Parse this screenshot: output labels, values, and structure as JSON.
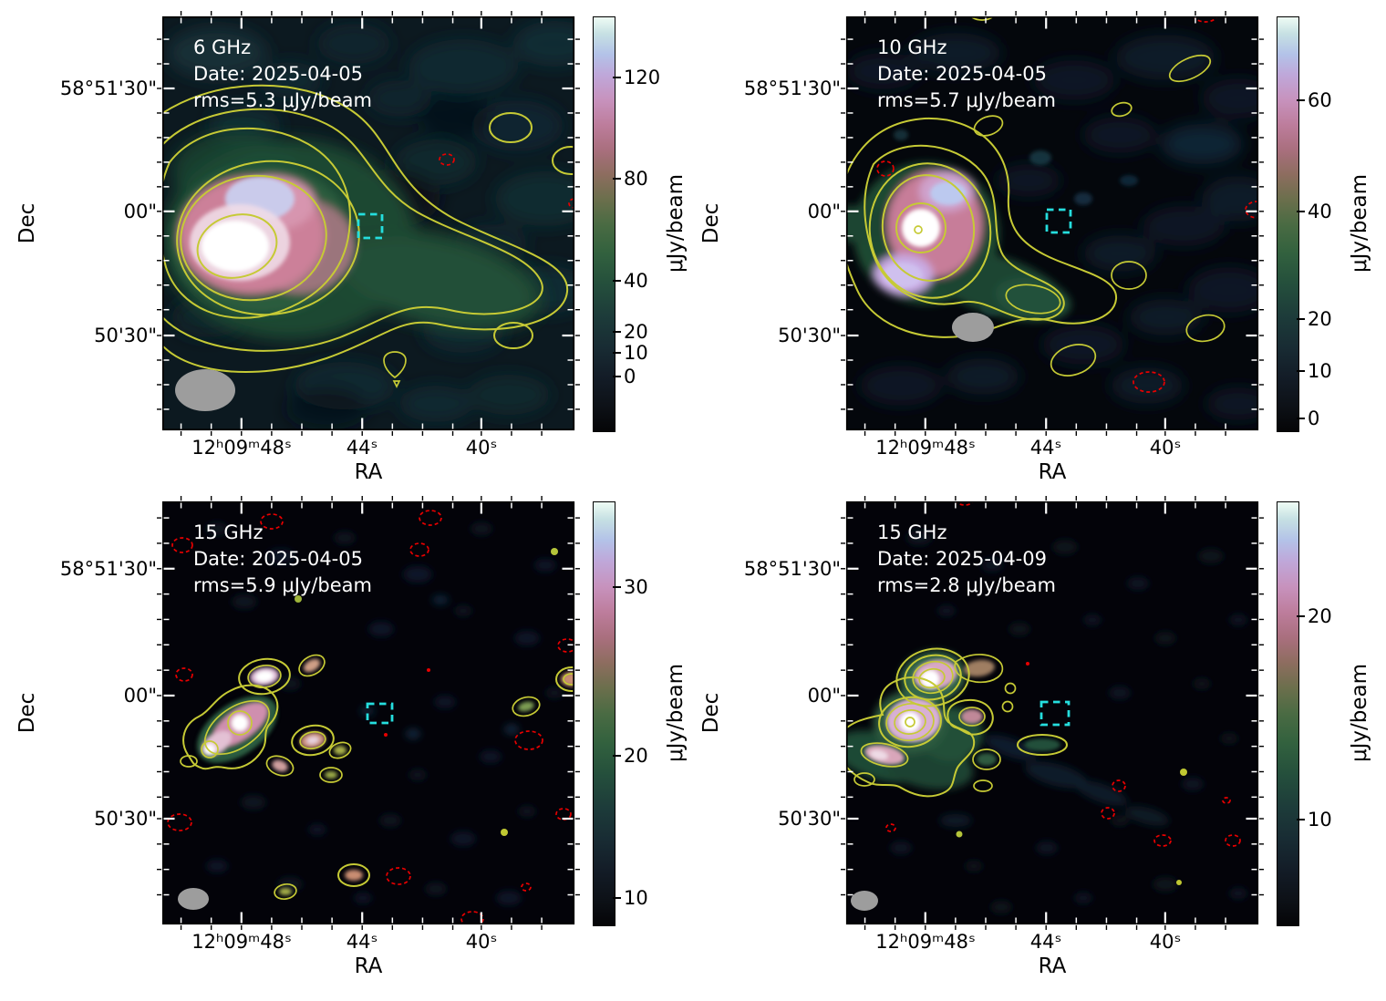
{
  "panels": [
    {
      "freq": "6 GHz",
      "date": "Date: 2025-04-05",
      "rms": "rms=5.3 μJy/beam",
      "xlabel": "RA",
      "ylabel": "Dec",
      "xticks": [
        "12ʰ09ᵐ48ˢ",
        "44ˢ",
        "40ˢ"
      ],
      "yticks": [
        "58°51'30\"",
        "00\"",
        "50'30\""
      ],
      "cbar": {
        "label": "μJy/beam",
        "ticks": [
          "120",
          "80",
          "40",
          "20",
          "10",
          "0"
        ]
      }
    },
    {
      "freq": "10 GHz",
      "date": "Date: 2025-04-05",
      "rms": "rms=5.7 μJy/beam",
      "xlabel": "RA",
      "ylabel": "Dec",
      "xticks": [
        "12ʰ09ᵐ48ˢ",
        "44ˢ",
        "40ˢ"
      ],
      "yticks": [
        "58°51'30\"",
        "00\"",
        "50'30\""
      ],
      "cbar": {
        "label": "μJy/beam",
        "ticks": [
          "60",
          "40",
          "20",
          "10",
          "0"
        ]
      }
    },
    {
      "freq": "15 GHz",
      "date": "Date: 2025-04-05",
      "rms": "rms=5.9 μJy/beam",
      "xlabel": "RA",
      "ylabel": "Dec",
      "xticks": [
        "12ʰ09ᵐ48ˢ",
        "44ˢ",
        "40ˢ"
      ],
      "yticks": [
        "58°51'30\"",
        "00\"",
        "50'30\""
      ],
      "cbar": {
        "label": "μJy/beam",
        "ticks": [
          "30",
          "20",
          "10"
        ]
      }
    },
    {
      "freq": "15 GHz",
      "date": "Date: 2025-04-09",
      "rms": "rms=2.8 μJy/beam",
      "xlabel": "RA",
      "ylabel": "Dec",
      "xticks": [
        "12ʰ09ᵐ48ˢ",
        "44ˢ",
        "40ˢ"
      ],
      "yticks": [
        "58°51'30\"",
        "00\"",
        "50'30\""
      ],
      "cbar": {
        "label": "μJy/beam",
        "ticks": [
          "20",
          "10"
        ]
      }
    }
  ],
  "figure_notes": {
    "positive_contours": "yellow solid contours",
    "negative_contours": "red dashed contours",
    "target_marker": "cyan dashed square",
    "beam_marker": "grey filled ellipse in lower-left of each panel",
    "colormap": "dark → teal → green → olive → rose/pink → lavender → pale mint white (cubehelix-like)"
  },
  "chart_data": [
    {
      "type": "heatmap",
      "title": "6 GHz",
      "frequency": "6 GHz",
      "date": "2025-04-05",
      "rms_ujy_per_beam": 5.3,
      "xlabel": "RA",
      "ylabel": "Dec",
      "x_tick_labels": [
        "12h09m48s",
        "44s",
        "40s"
      ],
      "y_tick_labels": [
        "58°51'30\"",
        "00\"",
        "50'30\""
      ],
      "colorbar": {
        "label": "μJy/beam",
        "tick_values": [
          120,
          80,
          40,
          20,
          10,
          0
        ],
        "tick_fractions_from_top": [
          0.145,
          0.39,
          0.64,
          0.76,
          0.81,
          0.87
        ],
        "scale": "nonlinear (asinh-like)"
      },
      "features": [
        "large bright extended source left of centre: saturated white core, pink inner halo, diffuse green envelope with a tail extending west across the lower map",
        "about 7 nested solid yellow positive contour levels around the source",
        "isolated yellow contour islands upper-right, right edge, lower-middle and lower-right",
        "one small red dashed negative contour upper-middle-right and a tiny one at right edge",
        "cyan dashed square target marker just right of map centre near the contour tail",
        "large grey filled beam ellipse in lower-left corner",
        "background shows mottled dark-teal noise"
      ]
    },
    {
      "type": "heatmap",
      "title": "10 GHz",
      "frequency": "10 GHz",
      "date": "2025-04-05",
      "rms_ujy_per_beam": 5.7,
      "xlabel": "RA",
      "ylabel": "Dec",
      "x_tick_labels": [
        "12h09m48s",
        "44s",
        "40s"
      ],
      "y_tick_labels": [
        "58°51'30\"",
        "00\"",
        "50'30\""
      ],
      "colorbar": {
        "label": "μJy/beam",
        "tick_values": [
          60,
          40,
          20,
          10,
          0
        ],
        "tick_fractions_from_top": [
          0.2,
          0.47,
          0.73,
          0.855,
          0.97
        ],
        "scale": "nonlinear (asinh-like)"
      },
      "features": [
        "compact bright source lower-left: white core ringed by yellow contour, pink lobes above and below-left, green envelope with arm extending to lower-left edge and a green contoured extension to the south-east",
        "several small isolated yellow contour islands (upper-middle, upper-right, right, lower-middle, lower-right)",
        "red dashed negative contours at top-right, left of source, right edge and lower-right",
        "cyan dashed square target marker near map centre",
        "grey filled beam ellipse below the source",
        "nearly black background with faint blue noise blobs"
      ]
    },
    {
      "type": "heatmap",
      "title": "15 GHz (2025-04-05)",
      "frequency": "15 GHz",
      "date": "2025-04-05",
      "rms_ujy_per_beam": 5.9,
      "xlabel": "RA",
      "ylabel": "Dec",
      "x_tick_labels": [
        "12h09m48s",
        "44s",
        "40s"
      ],
      "y_tick_labels": [
        "58°51'30\"",
        "00\"",
        "50'30\""
      ],
      "colorbar": {
        "label": "μJy/beam",
        "tick_values": [
          30,
          20,
          10
        ],
        "tick_fractions_from_top": [
          0.2,
          0.6,
          0.935
        ],
        "scale": "nonlinear"
      },
      "features": [
        "source resolved into a chain of compact knots left of centre, each with white/pink peaks inside small yellow contours; main diagonal cluster with two white cores",
        "additional small contoured knots to the lower-middle, right edge and lower-left of the map",
        "many small red dashed negative contours scattered over the field",
        "cyan dashed square target marker near map centre",
        "small grey filled beam ellipse in lower-left corner",
        "nearly black background with faint blue noise specks"
      ]
    },
    {
      "type": "heatmap",
      "title": "15 GHz (2025-04-09)",
      "frequency": "15 GHz",
      "date": "2025-04-09",
      "rms_ujy_per_beam": 2.8,
      "xlabel": "RA",
      "ylabel": "Dec",
      "x_tick_labels": [
        "12h09m48s",
        "44s",
        "40s"
      ],
      "y_tick_labels": [
        "58°51'30\"",
        "00\"",
        "50'30\""
      ],
      "colorbar": {
        "label": "μJy/beam",
        "tick_values": [
          20,
          10
        ],
        "tick_fractions_from_top": [
          0.27,
          0.75
        ],
        "scale": "nonlinear"
      },
      "features": [
        "two bright compact knots left of centre with concentric yellow contours and white peaks; diffuse green contoured arms extend to the left edge and south-east (kidney-shaped and pill-shaped contour islands)",
        "small yellow contour rings and dots scattered near the source and lower-right",
        "small red dashed negative contours mostly in the lower-right quadrant",
        "cyan dashed square target marker near map centre",
        "smallest grey filled beam ellipse in lower-left corner",
        "nearly black background with faint blue noise wisps"
      ]
    }
  ]
}
